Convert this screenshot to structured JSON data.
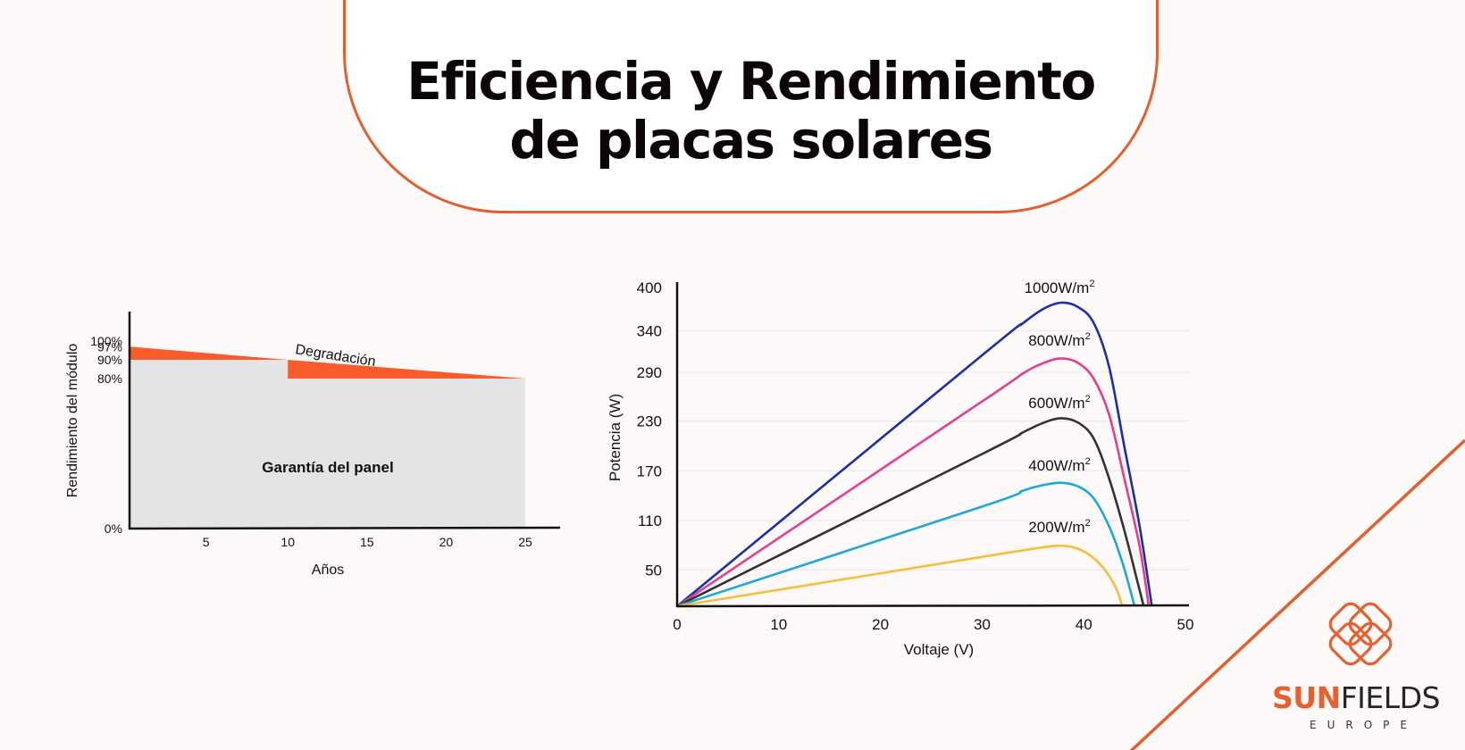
{
  "title": {
    "line1": "Eficiencia y Rendimiento",
    "line2": "de placas solares"
  },
  "colors": {
    "accent": "#e35f2d",
    "degradation_fill": "#f95b2a",
    "warranty_fill": "#e4e3e5",
    "background": "#fef9f9"
  },
  "logo": {
    "brand_bold": "SUN",
    "brand_light": "FIELDS",
    "subtitle": "EUROPE"
  },
  "chart_data": [
    {
      "type": "area",
      "title": "",
      "xlabel": "Años",
      "ylabel": "Rendimiento del módulo",
      "x_ticks": [
        "5",
        "10",
        "15",
        "20",
        "25"
      ],
      "y_ticks": [
        "100%",
        "97%",
        "90%",
        "80%",
        "0%"
      ],
      "xlim": [
        0,
        27
      ],
      "ylim": [
        0,
        100
      ],
      "grid": false,
      "annotations": [
        "Degradación",
        "Garantía del panel"
      ],
      "series": [
        {
          "name": "Degradación (rendimiento real)",
          "x": [
            0,
            10,
            25
          ],
          "values": [
            97,
            90,
            80
          ]
        },
        {
          "name": "Garantía del panel",
          "x": [
            0,
            10,
            10,
            25
          ],
          "values": [
            90,
            90,
            80,
            80
          ]
        }
      ]
    },
    {
      "type": "line",
      "title": "",
      "xlabel": "Voltaje (V)",
      "ylabel": "Potencia (W)",
      "x_ticks": [
        "0",
        "10",
        "20",
        "30",
        "40",
        "50"
      ],
      "y_ticks": [
        "400",
        "340",
        "290",
        "230",
        "170",
        "110",
        "50"
      ],
      "xlim": [
        0,
        50
      ],
      "ylim": [
        0,
        400
      ],
      "grid": true,
      "legend_position": "inline labels above each curve peak",
      "series": [
        {
          "name": "1000W/m²",
          "label": "1000W/m",
          "sup": "2",
          "color": "#1a2fa8",
          "x": [
            0,
            30,
            34,
            36,
            37.8,
            39.5,
            41,
            42.5,
            44,
            45.5,
            46.7
          ],
          "values": [
            0,
            315,
            355,
            373,
            381,
            375,
            355,
            300,
            200,
            100,
            0
          ]
        },
        {
          "name": "800W/m²",
          "label": "800W/m",
          "sup": "2",
          "color": "#e43f8c",
          "x": [
            0,
            30,
            34,
            36,
            37.8,
            39.5,
            41,
            42.5,
            44,
            45.5,
            46.4
          ],
          "values": [
            0,
            257,
            292,
            305,
            311,
            305,
            285,
            240,
            160,
            75,
            0
          ]
        },
        {
          "name": "600W/m²",
          "label": "600W/m",
          "sup": "2",
          "color": "#333333",
          "x": [
            0,
            30,
            34,
            36,
            37.8,
            39.5,
            41,
            42.5,
            44,
            45.2,
            45.9
          ],
          "values": [
            0,
            191,
            218,
            230,
            236,
            230,
            210,
            160,
            95,
            35,
            0
          ]
        },
        {
          "name": "400W/m²",
          "label": "400W/m",
          "sup": "2",
          "color": "#1ba8dc",
          "x": [
            0,
            30,
            34,
            36,
            37.8,
            39.5,
            41,
            42.5,
            43.8,
            45
          ],
          "values": [
            0,
            125,
            145,
            152,
            155,
            150,
            135,
            100,
            55,
            0
          ]
        },
        {
          "name": "200W/m²",
          "label": "200W/m",
          "sup": "2",
          "color": "#f4bf3a",
          "x": [
            0,
            30,
            34,
            36,
            37.5,
            39,
            40.5,
            42,
            43.2,
            43.8
          ],
          "values": [
            0,
            62,
            70,
            74,
            76,
            74,
            65,
            47,
            22,
            0
          ]
        }
      ]
    }
  ]
}
